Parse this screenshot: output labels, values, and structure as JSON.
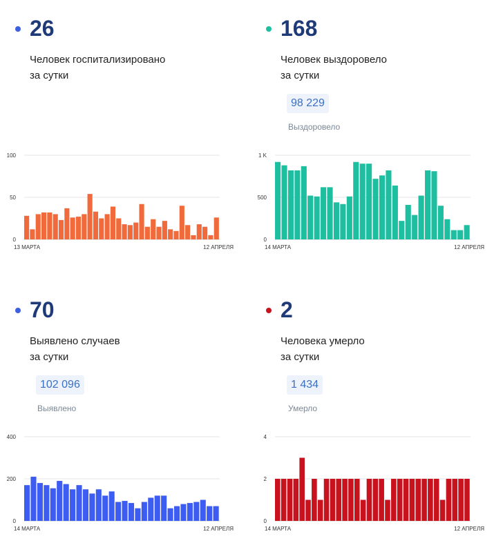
{
  "cards": [
    {
      "id": "hospitalized",
      "number": "26",
      "desc_line1": "Человек госпитализировано",
      "desc_line2": "за сутки",
      "dot_color": "#3b5fe0",
      "bar_color": "#f06a3c",
      "chart_data": {
        "type": "bar",
        "ylim": [
          0,
          100
        ],
        "yticks": [
          "0",
          "50",
          "100"
        ],
        "xlabel_start": "13 МАРТА",
        "xlabel_end": "12 АПРЕЛЯ",
        "values": [
          28,
          12,
          30,
          32,
          32,
          30,
          23,
          37,
          26,
          27,
          30,
          54,
          33,
          25,
          30,
          39,
          25,
          18,
          17,
          20,
          42,
          15,
          24,
          15,
          22,
          12,
          10,
          40,
          17,
          5,
          18,
          15,
          5,
          26
        ]
      }
    },
    {
      "id": "recovered",
      "number": "168",
      "desc_line1": "Человек выздоровело",
      "desc_line2": "за сутки",
      "total": "98 229",
      "total_label": "Выздоровело",
      "dot_color": "#1dbfa0",
      "bar_color": "#1dbfa0",
      "chart_data": {
        "type": "bar",
        "ylim": [
          0,
          1000
        ],
        "yticks": [
          "0",
          "500",
          "1 K"
        ],
        "xlabel_start": "14 МАРТА",
        "xlabel_end": "12 АПРЕЛЯ",
        "values": [
          920,
          880,
          820,
          820,
          870,
          520,
          510,
          620,
          620,
          440,
          420,
          510,
          920,
          900,
          900,
          720,
          760,
          820,
          640,
          220,
          410,
          290,
          520,
          820,
          810,
          400,
          240,
          110,
          110,
          170
        ]
      }
    },
    {
      "id": "detected",
      "number": "70",
      "desc_line1": "Выявлено случаев",
      "desc_line2": "за сутки",
      "total": "102 096",
      "total_label": "Выявлено",
      "dot_color": "#3b5fe0",
      "bar_color": "#3d5cf2",
      "chart_data": {
        "type": "bar",
        "ylim": [
          0,
          400
        ],
        "yticks": [
          "0",
          "200",
          "400"
        ],
        "xlabel_start": "14 МАРТА",
        "xlabel_end": "12 АПРЕЛЯ",
        "values": [
          170,
          210,
          180,
          170,
          155,
          190,
          175,
          150,
          170,
          150,
          130,
          150,
          120,
          140,
          90,
          95,
          85,
          60,
          90,
          110,
          120,
          120,
          60,
          70,
          80,
          85,
          90,
          100,
          70,
          70
        ]
      }
    },
    {
      "id": "deaths",
      "number": "2",
      "desc_line1": "Человека умерло",
      "desc_line2": "за сутки",
      "total": "1 434",
      "total_label": "Умерло",
      "dot_color": "#c8131f",
      "bar_color": "#c8131f",
      "chart_data": {
        "type": "bar",
        "ylim": [
          0,
          4
        ],
        "yticks": [
          "0",
          "2",
          "4"
        ],
        "xlabel_start": "14 МАРТА",
        "xlabel_end": "12 АПРЕЛЯ",
        "values": [
          2,
          2,
          2,
          2,
          3,
          1,
          2,
          1,
          2,
          2,
          2,
          2,
          2,
          2,
          1,
          2,
          2,
          2,
          1,
          2,
          2,
          2,
          2,
          2,
          2,
          2,
          2,
          1,
          2,
          2,
          2,
          2
        ]
      }
    }
  ]
}
